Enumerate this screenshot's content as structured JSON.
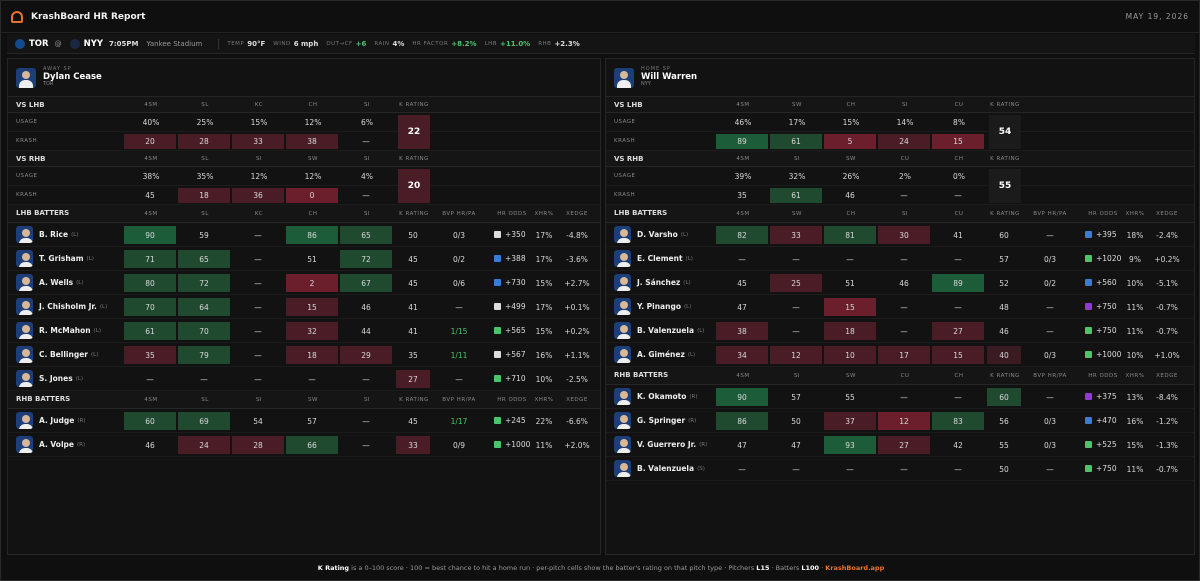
{
  "window": {
    "title": "KrashBoard HR Report",
    "date": "MAY 19, 2026"
  },
  "game": {
    "away": "TOR",
    "at": "@",
    "home": "NYY",
    "time": "7:05PM",
    "park": "Yankee Stadium",
    "temp_label": "TEMP",
    "temp": "90°F",
    "wind_label": "WIND",
    "wind": "6 mph",
    "wind_dir": "OUT→CF",
    "wind_val": "+6",
    "rain_label": "RAIN",
    "rain": "4%",
    "hrf_label": "HR FACTOR",
    "hrf": "+8.2%",
    "lhb_label": "LHB",
    "lhb": "+11.0%",
    "rhb_label": "RHB",
    "rhb": "+2.3%"
  },
  "colors": {
    "g_strong": "#1d5c38",
    "g_mid": "#1f4a30",
    "r_strong": "#6b1f2c",
    "r_mid": "#4a1d26",
    "r_light": "#3a1b21",
    "k_box_dark": "#1b1b1b",
    "brand": "#e8742c",
    "pos": "#4cc46a"
  },
  "left": {
    "side_label": "AWAY SP",
    "name": "Dylan Cease",
    "team": "TOR",
    "vs": [
      {
        "title": "VS LHB",
        "pitches": [
          "4SM",
          "SL",
          "KC",
          "CH",
          "SI"
        ],
        "usage": [
          "40%",
          "25%",
          "15%",
          "12%",
          "6%"
        ],
        "krash": [
          {
            "v": "20",
            "c": "r_mid"
          },
          {
            "v": "28",
            "c": "r_mid"
          },
          {
            "v": "33",
            "c": "r_mid"
          },
          {
            "v": "38",
            "c": "r_mid"
          },
          {
            "v": "—",
            "c": ""
          }
        ],
        "k": "22",
        "kc": "r_mid"
      },
      {
        "title": "VS RHB",
        "pitches": [
          "4SM",
          "SL",
          "SI",
          "SW",
          "SI"
        ],
        "usage": [
          "38%",
          "35%",
          "12%",
          "12%",
          "4%"
        ],
        "krash": [
          {
            "v": "45",
            "c": ""
          },
          {
            "v": "18",
            "c": "r_mid"
          },
          {
            "v": "36",
            "c": "r_mid"
          },
          {
            "v": "0",
            "c": "r_strong"
          },
          {
            "v": "—",
            "c": ""
          }
        ],
        "k": "20",
        "kc": "r_mid"
      }
    ],
    "groups": [
      {
        "title": "LHB BATTERS",
        "cols": [
          "4SM",
          "SL",
          "KC",
          "CH",
          "SI"
        ],
        "batters": [
          {
            "name": "B. Rice",
            "hand": "(L)",
            "cells": [
              {
                "v": "90",
                "c": "g_strong"
              },
              {
                "v": "59",
                "c": ""
              },
              {
                "v": "—",
                "c": ""
              },
              {
                "v": "86",
                "c": "g_strong"
              },
              {
                "v": "65",
                "c": "g_mid"
              }
            ],
            "k": "50",
            "kc": "",
            "bvp": "0/3",
            "bg": "",
            "bk": "#ddd",
            "odds": "+350",
            "xhr": "17%",
            "xedge": "-4.8%"
          },
          {
            "name": "T. Grisham",
            "hand": "(L)",
            "cells": [
              {
                "v": "71",
                "c": "g_mid"
              },
              {
                "v": "65",
                "c": "g_mid"
              },
              {
                "v": "—",
                "c": ""
              },
              {
                "v": "51",
                "c": ""
              },
              {
                "v": "72",
                "c": "g_mid"
              }
            ],
            "k": "45",
            "kc": "",
            "bvp": "0/2",
            "bg": "",
            "bk": "#3a7bd5",
            "odds": "+388",
            "xhr": "17%",
            "xedge": "-3.6%"
          },
          {
            "name": "A. Wells",
            "hand": "(L)",
            "cells": [
              {
                "v": "80",
                "c": "g_mid"
              },
              {
                "v": "72",
                "c": "g_mid"
              },
              {
                "v": "—",
                "c": ""
              },
              {
                "v": "2",
                "c": "r_strong"
              },
              {
                "v": "67",
                "c": "g_mid"
              }
            ],
            "k": "45",
            "kc": "",
            "bvp": "0/6",
            "bg": "",
            "bk": "#3a7bd5",
            "odds": "+730",
            "xhr": "15%",
            "xedge": "+2.7%"
          },
          {
            "name": "J. Chisholm Jr.",
            "hand": "(L)",
            "cells": [
              {
                "v": "70",
                "c": "g_mid"
              },
              {
                "v": "64",
                "c": "g_mid"
              },
              {
                "v": "—",
                "c": ""
              },
              {
                "v": "15",
                "c": "r_mid"
              },
              {
                "v": "46",
                "c": ""
              }
            ],
            "k": "41",
            "kc": "",
            "bvp": "—",
            "bg": "",
            "bk": "#ddd",
            "odds": "+499",
            "xhr": "17%",
            "xedge": "+0.1%"
          },
          {
            "name": "R. McMahon",
            "hand": "(L)",
            "cells": [
              {
                "v": "61",
                "c": "g_mid"
              },
              {
                "v": "70",
                "c": "g_mid"
              },
              {
                "v": "—",
                "c": ""
              },
              {
                "v": "32",
                "c": "r_mid"
              },
              {
                "v": "44",
                "c": ""
              }
            ],
            "k": "41",
            "kc": "",
            "bvp": "1/15",
            "bg": "pos",
            "bk": "#4cc46a",
            "odds": "+565",
            "xhr": "15%",
            "xedge": "+0.2%"
          },
          {
            "name": "C. Bellinger",
            "hand": "(L)",
            "cells": [
              {
                "v": "35",
                "c": "r_mid"
              },
              {
                "v": "79",
                "c": "g_mid"
              },
              {
                "v": "—",
                "c": ""
              },
              {
                "v": "18",
                "c": "r_mid"
              },
              {
                "v": "29",
                "c": "r_mid"
              }
            ],
            "k": "35",
            "kc": "",
            "bvp": "1/11",
            "bg": "pos",
            "bk": "#ddd",
            "odds": "+567",
            "xhr": "16%",
            "xedge": "+1.1%"
          },
          {
            "name": "S. Jones",
            "hand": "(L)",
            "cells": [
              {
                "v": "—",
                "c": ""
              },
              {
                "v": "—",
                "c": ""
              },
              {
                "v": "—",
                "c": ""
              },
              {
                "v": "—",
                "c": ""
              },
              {
                "v": "—",
                "c": ""
              }
            ],
            "k": "27",
            "kc": "r_mid",
            "bvp": "—",
            "bg": "",
            "bk": "#4cc46a",
            "odds": "+710",
            "xhr": "10%",
            "xedge": "-2.5%"
          }
        ]
      },
      {
        "title": "RHB BATTERS",
        "cols": [
          "4SM",
          "SL",
          "SI",
          "SW",
          "SI"
        ],
        "batters": [
          {
            "name": "A. Judge",
            "hand": "(R)",
            "cells": [
              {
                "v": "60",
                "c": "g_mid"
              },
              {
                "v": "69",
                "c": "g_mid"
              },
              {
                "v": "54",
                "c": ""
              },
              {
                "v": "57",
                "c": ""
              },
              {
                "v": "—",
                "c": ""
              }
            ],
            "k": "45",
            "kc": "",
            "bvp": "1/17",
            "bg": "pos",
            "bk": "#4cc46a",
            "odds": "+245",
            "xhr": "22%",
            "xedge": "-6.6%"
          },
          {
            "name": "A. Volpe",
            "hand": "(R)",
            "cells": [
              {
                "v": "46",
                "c": ""
              },
              {
                "v": "24",
                "c": "r_mid"
              },
              {
                "v": "28",
                "c": "r_mid"
              },
              {
                "v": "66",
                "c": "g_mid"
              },
              {
                "v": "—",
                "c": ""
              }
            ],
            "k": "33",
            "kc": "r_mid",
            "bvp": "0/9",
            "bg": "",
            "bk": "#4cc46a",
            "odds": "+1000",
            "xhr": "11%",
            "xedge": "+2.0%"
          }
        ]
      }
    ]
  },
  "right": {
    "side_label": "HOME SP",
    "name": "Will Warren",
    "team": "NYY",
    "vs": [
      {
        "title": "VS LHB",
        "pitches": [
          "4SM",
          "SW",
          "CH",
          "SI",
          "CU"
        ],
        "usage": [
          "46%",
          "17%",
          "15%",
          "14%",
          "8%"
        ],
        "krash": [
          {
            "v": "89",
            "c": "g_strong"
          },
          {
            "v": "61",
            "c": "g_mid"
          },
          {
            "v": "5",
            "c": "r_strong"
          },
          {
            "v": "24",
            "c": "r_mid"
          },
          {
            "v": "15",
            "c": "r_strong"
          }
        ],
        "k": "54",
        "kc": "k_box_dark"
      },
      {
        "title": "VS RHB",
        "pitches": [
          "4SM",
          "SI",
          "SW",
          "CU",
          "CH"
        ],
        "usage": [
          "39%",
          "32%",
          "26%",
          "2%",
          "0%"
        ],
        "krash": [
          {
            "v": "35",
            "c": ""
          },
          {
            "v": "61",
            "c": "g_mid"
          },
          {
            "v": "46",
            "c": ""
          },
          {
            "v": "—",
            "c": ""
          },
          {
            "v": "—",
            "c": ""
          }
        ],
        "k": "55",
        "kc": "k_box_dark"
      }
    ],
    "groups": [
      {
        "title": "LHB BATTERS",
        "cols": [
          "4SM",
          "SW",
          "CH",
          "SI",
          "CU"
        ],
        "batters": [
          {
            "name": "D. Varsho",
            "hand": "(L)",
            "cells": [
              {
                "v": "82",
                "c": "g_mid"
              },
              {
                "v": "33",
                "c": "r_mid"
              },
              {
                "v": "81",
                "c": "g_mid"
              },
              {
                "v": "30",
                "c": "r_mid"
              },
              {
                "v": "41",
                "c": ""
              }
            ],
            "k": "60",
            "kc": "",
            "bvp": "—",
            "bg": "",
            "bk": "#3a7bd5",
            "odds": "+395",
            "xhr": "18%",
            "xedge": "-2.4%"
          },
          {
            "name": "E. Clement",
            "hand": "(L)",
            "cells": [
              {
                "v": "—",
                "c": ""
              },
              {
                "v": "—",
                "c": ""
              },
              {
                "v": "—",
                "c": ""
              },
              {
                "v": "—",
                "c": ""
              },
              {
                "v": "—",
                "c": ""
              }
            ],
            "k": "57",
            "kc": "",
            "bvp": "0/3",
            "bg": "",
            "bk": "#4cc46a",
            "odds": "+1020",
            "xhr": "9%",
            "xedge": "+0.2%"
          },
          {
            "name": "J. Sánchez",
            "hand": "(L)",
            "cells": [
              {
                "v": "45",
                "c": ""
              },
              {
                "v": "25",
                "c": "r_mid"
              },
              {
                "v": "51",
                "c": ""
              },
              {
                "v": "46",
                "c": ""
              },
              {
                "v": "89",
                "c": "g_strong"
              }
            ],
            "k": "52",
            "kc": "",
            "bvp": "0/2",
            "bg": "",
            "bk": "#3a7bd5",
            "odds": "+560",
            "xhr": "10%",
            "xedge": "-5.1%"
          },
          {
            "name": "Y. Pinango",
            "hand": "(L)",
            "cells": [
              {
                "v": "47",
                "c": ""
              },
              {
                "v": "—",
                "c": ""
              },
              {
                "v": "15",
                "c": "r_strong"
              },
              {
                "v": "—",
                "c": ""
              },
              {
                "v": "—",
                "c": ""
              }
            ],
            "k": "48",
            "kc": "",
            "bvp": "—",
            "bg": "",
            "bk": "#8e3bd6",
            "odds": "+750",
            "xhr": "11%",
            "xedge": "-0.7%"
          },
          {
            "name": "B. Valenzuela",
            "hand": "(L)",
            "cells": [
              {
                "v": "38",
                "c": "r_mid"
              },
              {
                "v": "—",
                "c": ""
              },
              {
                "v": "18",
                "c": "r_mid"
              },
              {
                "v": "—",
                "c": ""
              },
              {
                "v": "27",
                "c": "r_mid"
              }
            ],
            "k": "46",
            "kc": "",
            "bvp": "—",
            "bg": "",
            "bk": "#4cc46a",
            "odds": "+750",
            "xhr": "11%",
            "xedge": "-0.7%"
          },
          {
            "name": "A. Giménez",
            "hand": "(L)",
            "cells": [
              {
                "v": "34",
                "c": "r_mid"
              },
              {
                "v": "12",
                "c": "r_mid"
              },
              {
                "v": "10",
                "c": "r_mid"
              },
              {
                "v": "17",
                "c": "r_mid"
              },
              {
                "v": "15",
                "c": "r_mid"
              }
            ],
            "k": "40",
            "kc": "r_light",
            "bvp": "0/3",
            "bg": "",
            "bk": "#4cc46a",
            "odds": "+1000",
            "xhr": "10%",
            "xedge": "+1.0%"
          }
        ]
      },
      {
        "title": "RHB BATTERS",
        "cols": [
          "4SM",
          "SI",
          "SW",
          "CU",
          "CH"
        ],
        "batters": [
          {
            "name": "K. Okamoto",
            "hand": "(R)",
            "cells": [
              {
                "v": "90",
                "c": "g_strong"
              },
              {
                "v": "57",
                "c": ""
              },
              {
                "v": "55",
                "c": ""
              },
              {
                "v": "—",
                "c": ""
              },
              {
                "v": "—",
                "c": ""
              }
            ],
            "k": "60",
            "kc": "g_mid",
            "bvp": "—",
            "bg": "",
            "bk": "#8e3bd6",
            "odds": "+375",
            "xhr": "13%",
            "xedge": "-8.4%"
          },
          {
            "name": "G. Springer",
            "hand": "(R)",
            "cells": [
              {
                "v": "86",
                "c": "g_mid"
              },
              {
                "v": "50",
                "c": ""
              },
              {
                "v": "37",
                "c": "r_mid"
              },
              {
                "v": "12",
                "c": "r_strong"
              },
              {
                "v": "83",
                "c": "g_mid"
              }
            ],
            "k": "56",
            "kc": "",
            "bvp": "0/3",
            "bg": "",
            "bk": "#3a7bd5",
            "odds": "+470",
            "xhr": "16%",
            "xedge": "-1.2%"
          },
          {
            "name": "V. Guerrero Jr.",
            "hand": "(R)",
            "cells": [
              {
                "v": "47",
                "c": ""
              },
              {
                "v": "47",
                "c": ""
              },
              {
                "v": "93",
                "c": "g_strong"
              },
              {
                "v": "27",
                "c": "r_mid"
              },
              {
                "v": "42",
                "c": ""
              }
            ],
            "k": "55",
            "kc": "",
            "bvp": "0/3",
            "bg": "",
            "bk": "#4cc46a",
            "odds": "+525",
            "xhr": "15%",
            "xedge": "-1.3%"
          },
          {
            "name": "B. Valenzuela",
            "hand": "(S)",
            "cells": [
              {
                "v": "—",
                "c": ""
              },
              {
                "v": "—",
                "c": ""
              },
              {
                "v": "—",
                "c": ""
              },
              {
                "v": "—",
                "c": ""
              },
              {
                "v": "—",
                "c": ""
              }
            ],
            "k": "50",
            "kc": "",
            "bvp": "—",
            "bg": "",
            "bk": "#4cc46a",
            "odds": "+750",
            "xhr": "11%",
            "xedge": "-0.7%"
          }
        ]
      }
    ]
  },
  "labels": {
    "usage": "USAGE",
    "krash": "KRASH",
    "k_rating": "K RATING",
    "bvp": "BVP HR/PA",
    "hr_odds": "HR ODDS",
    "xhr": "XHR%",
    "xedge": "XEDGE"
  },
  "footer": {
    "k": "K Rating",
    "text1": " is a 0–100 score · 100 = best chance to hit a home run · per-pitch cells show the batter's rating on that pitch type · Pitchers ",
    "l15": "L15",
    "text2": " · Batters ",
    "l100": "L100",
    "text3": " · ",
    "brand": "KrashBoard.app"
  }
}
